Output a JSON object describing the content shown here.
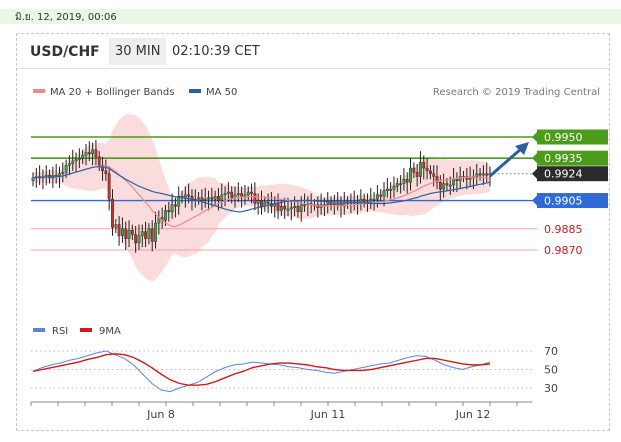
{
  "top_date": "มิ.ย. 12, 2019, 00:06",
  "header": {
    "symbol": "USD/CHF",
    "timeframe": "30 MIN",
    "clock": "02:10:39 CET"
  },
  "legend": {
    "ma_bb": "MA 20 + Bollinger Bands",
    "ma50": "MA 50",
    "credit": "Research © 2019 Trading Central"
  },
  "colors": {
    "green": "#4a9c1a",
    "blue": "#2f6ad6",
    "salmon": "#f08a8a",
    "red": "#d11a1a",
    "dark": "#2b2b2b",
    "ma50": "#2b5fa8",
    "arrow": "#2e5e9c"
  },
  "chart_data": [
    {
      "type": "candlestick",
      "ylim": [
        0.9855,
        0.996
      ],
      "x_ticks": [
        "Jun 8",
        "Jun 11",
        "Jun 12"
      ],
      "close": [
        0.9921,
        0.9922,
        0.9921,
        0.9922,
        0.9923,
        0.9921,
        0.9923,
        0.9922,
        0.9924,
        0.9925,
        0.993,
        0.9931,
        0.9933,
        0.9934,
        0.9935,
        0.9937,
        0.9939,
        0.9938,
        0.9941,
        0.9936,
        0.993,
        0.9926,
        0.9924,
        0.9906,
        0.9886,
        0.9888,
        0.988,
        0.9885,
        0.9878,
        0.9884,
        0.9881,
        0.9875,
        0.988,
        0.9883,
        0.9878,
        0.9885,
        0.9876,
        0.9889,
        0.9893,
        0.9891,
        0.9898,
        0.9897,
        0.9902,
        0.9901,
        0.9908,
        0.9907,
        0.9909,
        0.9908,
        0.9906,
        0.9906,
        0.9907,
        0.9905,
        0.9906,
        0.9907,
        0.9906,
        0.9908,
        0.9905,
        0.9909,
        0.991,
        0.9911,
        0.9907,
        0.9909,
        0.991,
        0.9908,
        0.9909,
        0.9911,
        0.991,
        0.9903,
        0.9905,
        0.9901,
        0.9904,
        0.9903,
        0.9901,
        0.9903,
        0.9898,
        0.9901,
        0.9899,
        0.9899,
        0.99,
        0.9901,
        0.9897,
        0.9902,
        0.9902,
        0.9903,
        0.9902,
        0.9902,
        0.99,
        0.9902,
        0.9902,
        0.9904,
        0.9902,
        0.9903,
        0.9903,
        0.9901,
        0.9904,
        0.9903,
        0.9904,
        0.9903,
        0.9904,
        0.9906,
        0.9904,
        0.9904,
        0.9906,
        0.9906,
        0.9909,
        0.9908,
        0.9912,
        0.9913,
        0.9913,
        0.9915,
        0.9917,
        0.9917,
        0.992,
        0.9918,
        0.9928,
        0.9925,
        0.9922,
        0.9932,
        0.9928,
        0.9926,
        0.9924,
        0.9922,
        0.9918,
        0.9913,
        0.9917,
        0.9916,
        0.9916,
        0.992,
        0.9919,
        0.9922,
        0.9922,
        0.992,
        0.9921,
        0.9922,
        0.9924,
        0.9923,
        0.9924,
        0.9923,
        0.9924
      ],
      "levels": [
        {
          "value": 0.995,
          "label": "0.9950",
          "kind": "resistance"
        },
        {
          "value": 0.9935,
          "label": "0.9935",
          "kind": "resistance"
        },
        {
          "value": 0.9924,
          "label": "0.9924",
          "kind": "last"
        },
        {
          "value": 0.9905,
          "label": "0.9905",
          "kind": "pivot"
        },
        {
          "value": 0.9885,
          "label": "0.9885",
          "kind": "support"
        },
        {
          "value": 0.987,
          "label": "0.9870",
          "kind": "support"
        }
      ],
      "series": [
        {
          "name": "MA 20 + Bollinger Bands"
        },
        {
          "name": "MA 50"
        }
      ]
    },
    {
      "type": "line",
      "ylim": [
        20,
        78
      ],
      "y_ticks": [
        "70",
        "50",
        "30"
      ],
      "series": [
        {
          "name": "RSI",
          "values": [
            48,
            52,
            55,
            57,
            60,
            62,
            65,
            68,
            70,
            66,
            62,
            55,
            45,
            35,
            28,
            26,
            30,
            33,
            36,
            42,
            48,
            52,
            55,
            56,
            58,
            57,
            56,
            55,
            53,
            52,
            50,
            49,
            47,
            46,
            48,
            50,
            52,
            54,
            56,
            57,
            60,
            63,
            65,
            64,
            60,
            55,
            52,
            50,
            53,
            55,
            58
          ]
        },
        {
          "name": "9MA",
          "values": [
            48,
            50,
            52,
            54,
            56,
            58,
            61,
            63,
            66,
            67,
            66,
            63,
            58,
            52,
            45,
            39,
            35,
            33,
            33,
            34,
            37,
            41,
            45,
            48,
            52,
            54,
            56,
            57,
            57,
            56,
            55,
            53,
            52,
            50,
            49,
            49,
            49,
            50,
            52,
            54,
            56,
            58,
            60,
            62,
            62,
            60,
            58,
            56,
            55,
            55,
            56
          ]
        }
      ]
    }
  ]
}
